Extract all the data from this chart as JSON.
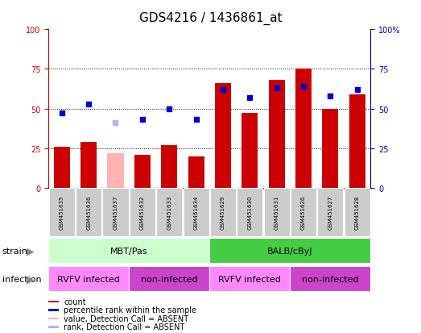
{
  "title": "GDS4216 / 1436861_at",
  "samples": [
    "GSM451635",
    "GSM451636",
    "GSM451637",
    "GSM451632",
    "GSM451633",
    "GSM451634",
    "GSM451629",
    "GSM451630",
    "GSM451631",
    "GSM451626",
    "GSM451627",
    "GSM451628"
  ],
  "bar_values": [
    26,
    29,
    22,
    21,
    27,
    20,
    66,
    47,
    68,
    75,
    50,
    59
  ],
  "bar_colors": [
    "#cc0000",
    "#cc0000",
    "#ffb3b3",
    "#cc0000",
    "#cc0000",
    "#cc0000",
    "#cc0000",
    "#cc0000",
    "#cc0000",
    "#cc0000",
    "#cc0000",
    "#cc0000"
  ],
  "dot_values": [
    47,
    53,
    41,
    43,
    50,
    43,
    62,
    57,
    63,
    64,
    58,
    62
  ],
  "dot_colors": [
    "#0000cc",
    "#0000cc",
    "#b3b3ff",
    "#0000cc",
    "#0000cc",
    "#0000cc",
    "#0000cc",
    "#0000cc",
    "#0000cc",
    "#0000cc",
    "#0000cc",
    "#0000cc"
  ],
  "ylim": [
    0,
    100
  ],
  "y_ticks": [
    0,
    25,
    50,
    75,
    100
  ],
  "strain_groups": [
    {
      "label": "MBT/Pas",
      "start": 0,
      "end": 6,
      "color": "#ccffcc"
    },
    {
      "label": "BALB/cByJ",
      "start": 6,
      "end": 12,
      "color": "#44cc44"
    }
  ],
  "infection_colors": {
    "RVFV infected": "#ff88ff",
    "non-infected": "#cc44cc"
  },
  "infection_groups": [
    {
      "label": "RVFV infected",
      "start": 0,
      "end": 3
    },
    {
      "label": "non-infected",
      "start": 3,
      "end": 6
    },
    {
      "label": "RVFV infected",
      "start": 6,
      "end": 9
    },
    {
      "label": "non-infected",
      "start": 9,
      "end": 12
    }
  ],
  "legend_items": [
    {
      "label": "count",
      "color": "#cc0000"
    },
    {
      "label": "percentile rank within the sample",
      "color": "#0000cc"
    },
    {
      "label": "value, Detection Call = ABSENT",
      "color": "#ffb3b3"
    },
    {
      "label": "rank, Detection Call = ABSENT",
      "color": "#b3b3ff"
    }
  ],
  "left_axis_color": "#cc0000",
  "right_axis_color": "#0000cc",
  "title_fontsize": 11,
  "tick_fontsize": 7,
  "label_fontsize": 8,
  "sample_fontsize": 5,
  "legend_fontsize": 7
}
